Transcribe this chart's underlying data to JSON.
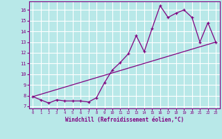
{
  "xlabel": "Windchill (Refroidissement éolien,°C)",
  "xlim": [
    -0.5,
    23.5
  ],
  "ylim": [
    6.8,
    16.8
  ],
  "yticks": [
    7,
    8,
    9,
    10,
    11,
    12,
    13,
    14,
    15,
    16
  ],
  "xticks": [
    0,
    1,
    2,
    3,
    4,
    5,
    6,
    7,
    8,
    9,
    10,
    11,
    12,
    13,
    14,
    15,
    16,
    17,
    18,
    19,
    20,
    21,
    22,
    23
  ],
  "line_color": "#800080",
  "bg_color": "#b8e8e8",
  "grid_color": "#ffffff",
  "curve1_x": [
    0,
    1,
    2,
    3,
    4,
    5,
    6,
    7,
    8,
    9,
    10,
    11,
    12,
    13,
    14,
    15,
    16,
    17,
    18,
    19,
    20,
    21,
    22,
    23
  ],
  "curve1_y": [
    7.9,
    7.6,
    7.3,
    7.6,
    7.5,
    7.5,
    7.5,
    7.4,
    7.8,
    9.2,
    10.4,
    11.1,
    11.9,
    13.6,
    12.1,
    14.3,
    16.4,
    15.3,
    15.7,
    16.0,
    15.3,
    13.0,
    14.8,
    13.0
  ],
  "curve2_x": [
    0,
    23
  ],
  "curve2_y": [
    7.9,
    13.0
  ],
  "marker": "+"
}
